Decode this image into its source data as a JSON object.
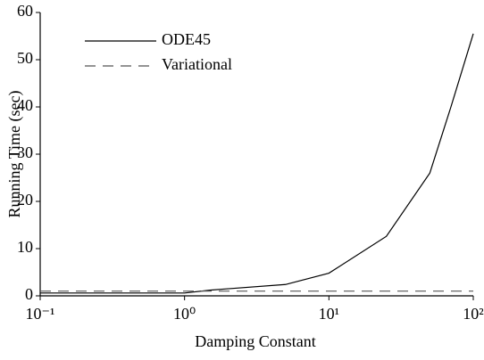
{
  "chart_data": {
    "type": "line",
    "x_label": "Damping Constant",
    "y_label": "Running Time (sec)",
    "x": [
      0.1,
      0.2,
      0.5,
      1,
      1.5,
      2,
      5,
      10,
      25,
      50,
      70,
      100
    ],
    "series": [
      {
        "name": "ODE45",
        "color": "#000000",
        "dash": "solid",
        "values": [
          0.6,
          0.6,
          0.6,
          0.6,
          1.2,
          1.5,
          2.4,
          4.8,
          12.6,
          26,
          40,
          55.5
        ]
      },
      {
        "name": "Variational",
        "color": "#555555",
        "dash": "dashed",
        "values": [
          1.0,
          1.0,
          1.0,
          1.0,
          1.0,
          1.0,
          1.0,
          1.0,
          1.0,
          1.0,
          1.0,
          1.0
        ]
      }
    ],
    "xscale": "log",
    "xlim": [
      0.1,
      100
    ],
    "xticks": [
      {
        "value": 0.1,
        "label": "10⁻¹"
      },
      {
        "value": 1,
        "label": "10⁰"
      },
      {
        "value": 10,
        "label": "10¹"
      },
      {
        "value": 100,
        "label": "10²"
      }
    ],
    "ylim": [
      0,
      60
    ],
    "yticks": [
      0,
      10,
      20,
      30,
      40,
      50,
      60
    ],
    "legend": "upper left"
  }
}
